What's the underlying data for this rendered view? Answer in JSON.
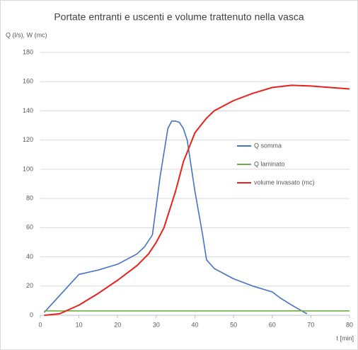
{
  "chart_data": {
    "type": "line",
    "title": "Portate entranti e uscenti e volume trattenuto nella vasca",
    "y_label": "Q (l/s), W (mc)",
    "x_label": "t [min]",
    "xlim": [
      0,
      80
    ],
    "xticks": [
      0,
      10,
      20,
      30,
      40,
      50,
      60,
      70,
      80
    ],
    "ylim": [
      0,
      180
    ],
    "yticks": [
      0,
      20,
      40,
      60,
      80,
      100,
      120,
      140,
      160,
      180
    ],
    "grid": true,
    "legend": "center-right",
    "series": [
      {
        "name": "Q somma",
        "color": "#4472c4",
        "x": [
          1,
          10,
          15,
          20,
          25,
          27,
          29,
          31,
          33,
          34,
          35,
          36,
          37,
          38,
          40,
          42,
          43,
          45,
          50,
          55,
          60,
          62,
          65,
          69
        ],
        "values": [
          2,
          28,
          31,
          35,
          42,
          47,
          55,
          95,
          128,
          133,
          133,
          132,
          128,
          120,
          85,
          55,
          38,
          32,
          25,
          20,
          16,
          12,
          7,
          1
        ]
      },
      {
        "name": "Q laminato",
        "color": "#70ad47",
        "x": [
          1,
          80
        ],
        "values": [
          3,
          3
        ]
      },
      {
        "name": "volume invasato (mc)",
        "color": "#e8211a",
        "x": [
          1,
          5,
          10,
          15,
          20,
          25,
          28,
          30,
          32,
          35,
          37,
          40,
          43,
          45,
          50,
          55,
          60,
          65,
          70,
          75,
          80
        ],
        "values": [
          0,
          1,
          7,
          15,
          24,
          34,
          42,
          50,
          60,
          85,
          105,
          125,
          135,
          140,
          147,
          152,
          156,
          157.5,
          157,
          156,
          155
        ]
      }
    ]
  }
}
